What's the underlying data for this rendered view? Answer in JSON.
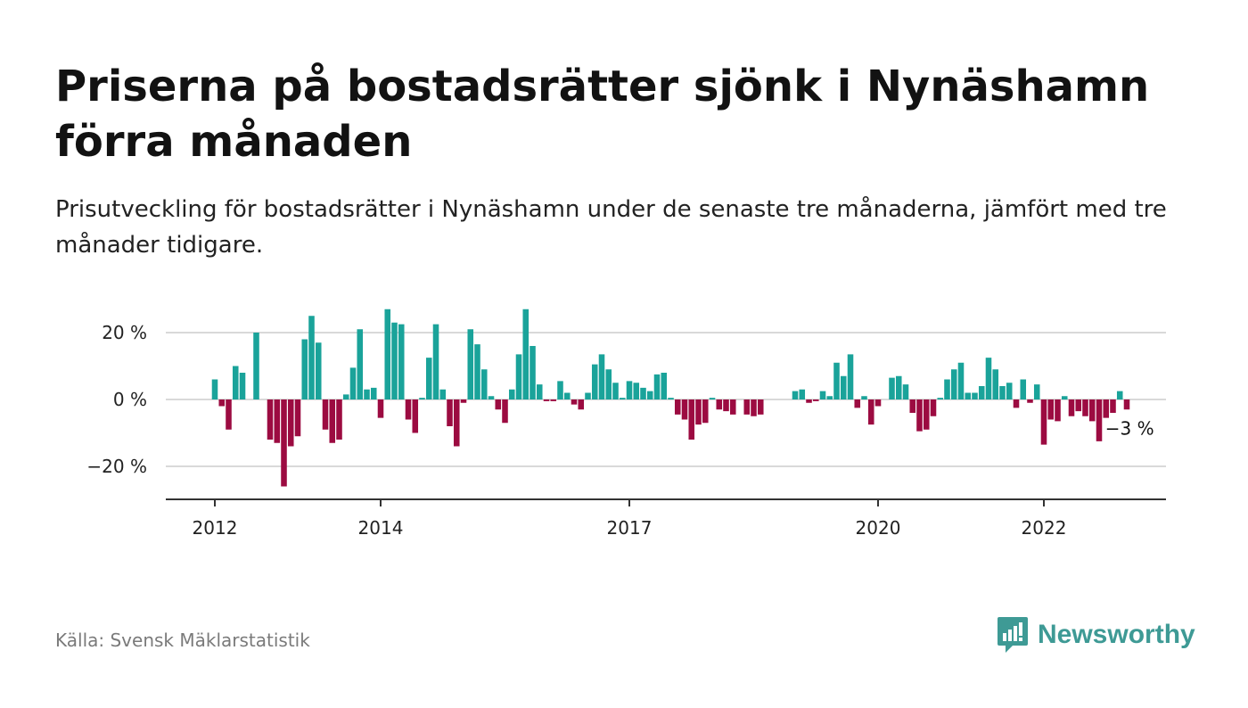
{
  "title": "Priserna på bostadsrätter sjönk i Nynäshamn förra månaden",
  "subtitle": "Prisutveckling för bostadsrätter i Nynäshamn under de senaste tre månaderna, jämfört med tre månader tidigare.",
  "source": "Källa: Svensk Mäklarstatistik",
  "brand": {
    "name": "Newsworthy",
    "icon": "newsworthy-logo-icon",
    "color": "#3e9a95"
  },
  "colors": {
    "positive": "#1aa39a",
    "negative": "#9c0b41",
    "grid": "#d9d9d9",
    "axis": "#333333"
  },
  "chart_data": {
    "type": "bar",
    "x_unit": "month",
    "x_start": "2012-01",
    "x_ticks": [
      "2012",
      "2014",
      "2017",
      "2020",
      "2022"
    ],
    "y_ticks": [
      "20 %",
      "0 %",
      "−20 %"
    ],
    "ylim": [
      -30,
      27
    ],
    "grid": true,
    "annotation": {
      "text": "−3 %",
      "x": "2023-02",
      "y": -3
    },
    "values": [
      6,
      -2,
      -9,
      10,
      8,
      0,
      20,
      0,
      -12,
      -13,
      -26,
      -14,
      -11,
      18,
      25,
      17,
      -9,
      -13,
      -12,
      1.5,
      9.5,
      21,
      3,
      3.5,
      -5.5,
      27,
      23,
      22.5,
      -6,
      -10,
      0.5,
      12.5,
      22.5,
      3,
      -8,
      -14,
      -1,
      21,
      16.5,
      9,
      1,
      -3,
      -7,
      3,
      13.5,
      27,
      16,
      4.5,
      -0.5,
      -0.5,
      5.5,
      2,
      -1.5,
      -3,
      2,
      10.5,
      13.5,
      9,
      5,
      0.5,
      5.5,
      5,
      3.5,
      2.5,
      7.5,
      8,
      0.5,
      -4.5,
      -6,
      -12,
      -7.5,
      -7,
      0.5,
      -3,
      -3.5,
      -4.5,
      0,
      -4.5,
      -5,
      -4.5,
      0,
      0,
      0,
      0,
      2.5,
      3,
      -1,
      -0.5,
      2.5,
      1,
      11,
      7,
      13.5,
      -2.5,
      1,
      -7.5,
      -2,
      0,
      6.5,
      7,
      4.5,
      -4,
      -9.5,
      -9,
      -5,
      0.5,
      6,
      9,
      11,
      2,
      2,
      4,
      12.5,
      9,
      4,
      5,
      -2.5,
      6,
      -1,
      4.5,
      -13.5,
      -6,
      -6.5,
      1,
      -5,
      -3.5,
      -5,
      -6.5,
      -12.5,
      -5.5,
      -4,
      2.5,
      -3
    ]
  }
}
